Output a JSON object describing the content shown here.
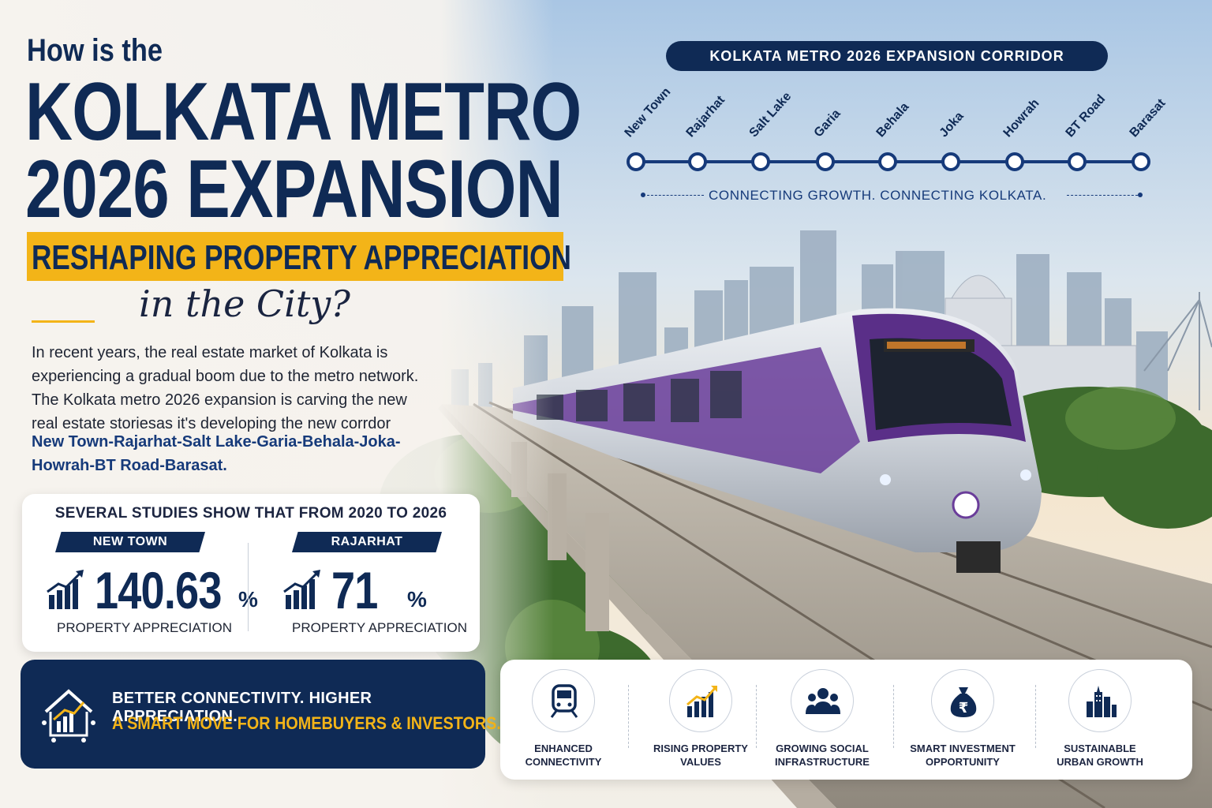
{
  "headline": {
    "small": "How is the",
    "line1": "KOLKATA METRO",
    "line2": "2026 EXPANSION",
    "band": "RESHAPING PROPERTY APPRECIATION",
    "script": "in the City?"
  },
  "intro": {
    "lines": [
      "In recent years, the real estate market of Kolkata is",
      "experiencing a gradual boom due to the metro network.",
      "The Kolkata metro 2026 expansion is carving the new",
      "real estate storiesas it's developing the new corrdor"
    ],
    "corridor_lines": [
      "New Town-Rajarhat-Salt Lake-Garia-Behala-Joka-",
      "Howrah-BT Road-Barasat."
    ]
  },
  "stats": {
    "title": "SEVERAL STUDIES SHOW THAT FROM 2020 TO 2026",
    "items": [
      {
        "area": "NEW TOWN",
        "value": "140.63",
        "unit": "%",
        "label": "PROPERTY APPRECIATION",
        "icon": "growth-chart-icon"
      },
      {
        "area": "RAJARHAT",
        "value": "71",
        "unit": "%",
        "label": "PROPERTY APPRECIATION",
        "icon": "growth-chart-icon"
      }
    ]
  },
  "banner": {
    "line1": "BETTER CONNECTIVITY. HIGHER APPRECIATION.",
    "line2": "A SMART MOVE FOR HOMEBUYERS & INVESTORS.",
    "icon": "house-growth-icon"
  },
  "corridor": {
    "title": "KOLKATA METRO 2026 EXPANSION CORRIDOR",
    "stations": [
      "New Town",
      "Rajarhat",
      "Salt Lake",
      "Garia",
      "Behala",
      "Joka",
      "Howrah",
      "BT Road",
      "Barasat"
    ],
    "tagline": "CONNECTING GROWTH. CONNECTING KOLKATA."
  },
  "benefits": [
    {
      "line1": "ENHANCED",
      "line2": "CONNECTIVITY",
      "icon": "metro-train-icon"
    },
    {
      "line1": "RISING PROPERTY",
      "line2": "VALUES",
      "icon": "rising-chart-icon"
    },
    {
      "line1": "GROWING SOCIAL",
      "line2": "INFRASTRUCTURE",
      "icon": "community-icon"
    },
    {
      "line1": "SMART INVESTMENT",
      "line2": "OPPORTUNITY",
      "icon": "rupee-bag-icon"
    },
    {
      "line1": "SUSTAINABLE",
      "line2": "URBAN GROWTH",
      "icon": "city-buildings-icon"
    }
  ],
  "colors": {
    "navy": "#0f2a55",
    "accent_yellow": "#f3b418",
    "train_purple": "#6a3d9a"
  }
}
